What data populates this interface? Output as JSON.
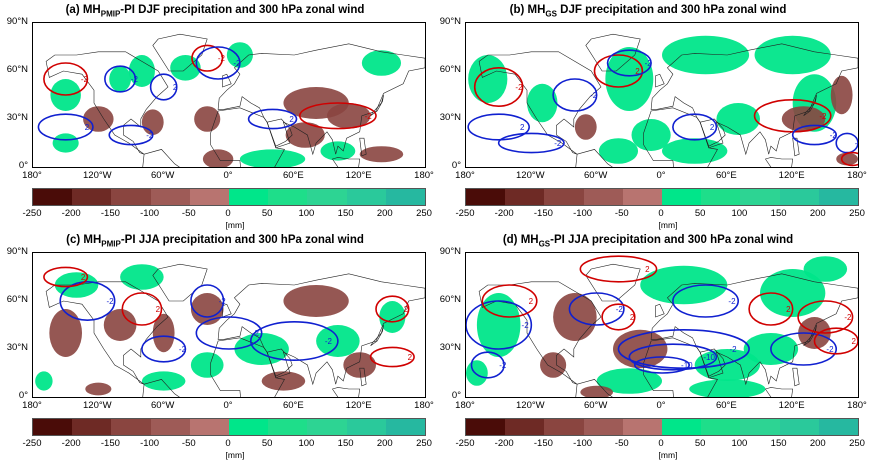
{
  "panels": [
    {
      "id": "a",
      "title_prefix": "(a) MH",
      "title_sub": "PMIP",
      "title_suffix": "-PI DJF precipitation and 300 hPa zonal wind",
      "contour_labels": [
        "-2",
        "-2",
        "2",
        "-2",
        "2",
        "-2",
        "-2",
        "2",
        "-2"
      ]
    },
    {
      "id": "b",
      "title_prefix": "(b) MH",
      "title_sub": "GS",
      "title_suffix": " DJF precipitation and 300 hPa zonal wind",
      "contour_labels": [
        "-2",
        "2",
        "-2",
        "2",
        "-2",
        "-2",
        "-2",
        "2",
        "-2",
        "-2",
        "2"
      ]
    },
    {
      "id": "c",
      "title_prefix": "(c) MH",
      "title_sub": "PMIP",
      "title_suffix": "-PI JJA precipitation and 300 hPa zonal wind",
      "contour_labels": [
        "-2",
        "2",
        "-2",
        "2",
        "-2",
        "-2",
        "-2",
        "2",
        "2"
      ]
    },
    {
      "id": "d",
      "title_prefix": "(d) MH",
      "title_sub": "GS",
      "title_suffix": "-PI JJA precipitation and 300 hPa zonal wind",
      "contour_labels": [
        "2",
        "-2",
        "2",
        "-2",
        "2",
        "-2",
        "2",
        "-2",
        "-10",
        "-10",
        "-2",
        "-2",
        "-2",
        "2"
      ]
    }
  ],
  "axes": {
    "lat_labels": [
      "90°N",
      "60°N",
      "30°N",
      "0°"
    ],
    "lon_labels": [
      "180°",
      "120°W",
      "60°W",
      "0°",
      "60°E",
      "120°E",
      "180°"
    ]
  },
  "colorbar": {
    "ticks": [
      "-250",
      "-200",
      "-150",
      "-100",
      "-50",
      "0",
      "50",
      "100",
      "150",
      "200",
      "250"
    ],
    "unit": "[mm]",
    "colors": [
      "#4a0c08",
      "#6e2a25",
      "#8a4540",
      "#9e5b57",
      "#b87470",
      "#00e68a",
      "#1ede8a",
      "#2dd493",
      "#2ac99b",
      "#26b8a0"
    ]
  },
  "chart_data": {
    "type": "heatmap",
    "description_fields": {
      "variable": "precipitation anomaly",
      "overlay": "300 hPa zonal wind contours",
      "unit": "mm",
      "range": [
        -250,
        250
      ]
    },
    "panels": [
      "a",
      "b",
      "c",
      "d"
    ],
    "xlim": [
      -180,
      180
    ],
    "ylim": [
      0,
      90
    ]
  }
}
